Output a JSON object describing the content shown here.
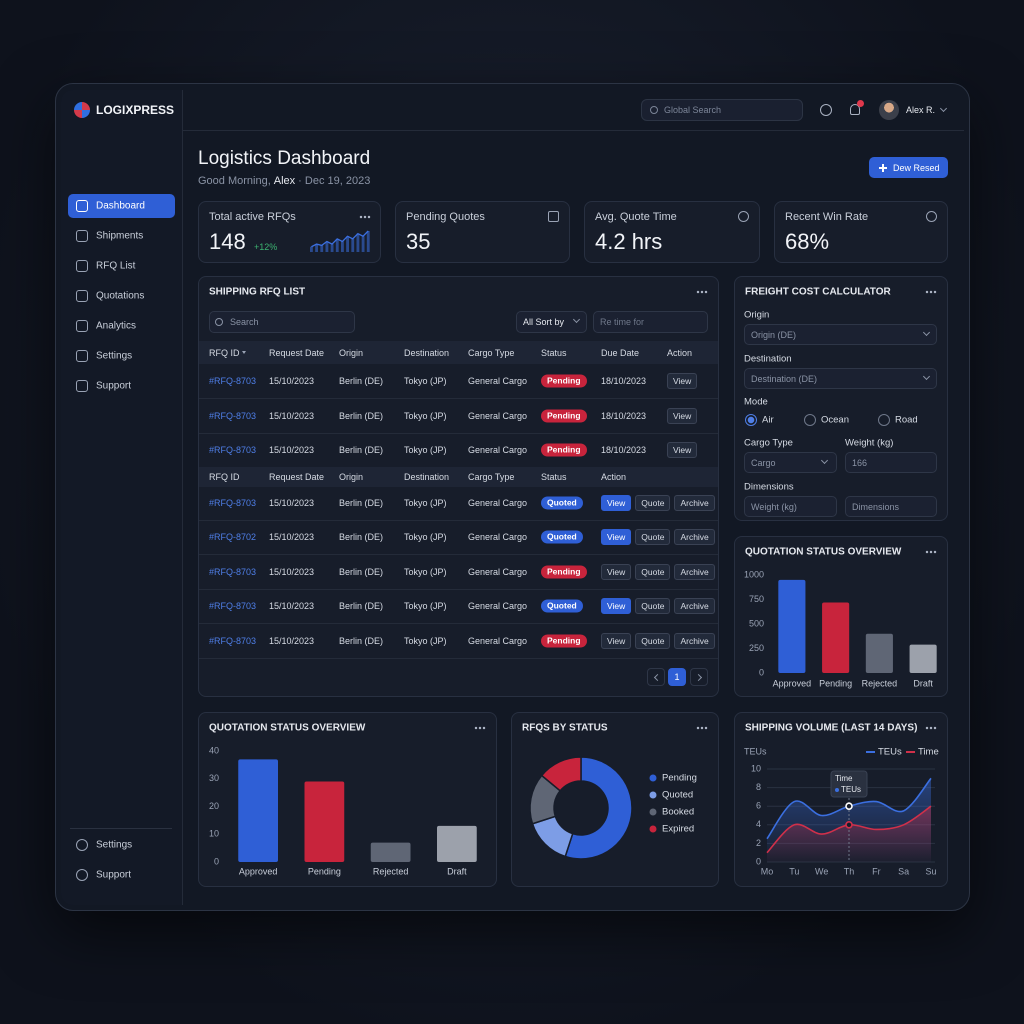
{
  "app": {
    "brand": "LOGIXPRESS",
    "search_placeholder": "Global Search",
    "user": "Alex R."
  },
  "nav": {
    "items": [
      "Dashboard",
      "Shipments",
      "RFQ List",
      "Quotations",
      "Analytics",
      "Settings",
      "Support"
    ],
    "active": 0,
    "footer": [
      "Settings",
      "Support"
    ]
  },
  "header": {
    "title": "Logistics Dashboard",
    "greeting": "Good Morning,",
    "name": "Alex",
    "date": "· Dec 19, 2023",
    "button": "Dew Resed"
  },
  "kpis": [
    {
      "label": "Total active RFQs",
      "value": "148",
      "delta": "+12%"
    },
    {
      "label": "Pending Quotes",
      "value": "35"
    },
    {
      "label": "Avg. Quote Time",
      "value": "4.2 hrs"
    },
    {
      "label": "Recent Win Rate",
      "value": "68%"
    }
  ],
  "rfq_list": {
    "title": "SHIPPING RFQ LIST",
    "search_placeholder": "Search",
    "sort": "All Sort by",
    "filter_placeholder": "Re time for",
    "columns": [
      "RFQ ID",
      "Request Date",
      "Origin",
      "Destination",
      "Cargo Type",
      "Status",
      "Due Date",
      "Action"
    ],
    "columns2": [
      "RFQ ID",
      "Request Date",
      "Origin",
      "Destination",
      "Cargo Type",
      "Status",
      "Action"
    ],
    "status_colors": {
      "Pending": "#c8243c",
      "Quoted": "#2f5fd6"
    },
    "rows": [
      {
        "cells": [
          "#RFQ-8703",
          "15/10/2023",
          "Berlin (DE)",
          "Tokyo (JP)",
          "General Cargo",
          "Pending",
          "18/10/2023"
        ],
        "actions": [
          "View"
        ],
        "action_highlight": false
      },
      {
        "cells": [
          "#RFQ-8703",
          "15/10/2023",
          "Berlin (DE)",
          "Tokyo (JP)",
          "General Cargo",
          "Pending",
          "18/10/2023"
        ],
        "actions": [
          "View"
        ],
        "action_highlight": false
      },
      {
        "cells": [
          "#RFQ-8703",
          "15/10/2023",
          "Berlin (DE)",
          "Tokyo (JP)",
          "General Cargo",
          "Pending",
          "18/10/2023"
        ],
        "actions": [
          "View"
        ],
        "action_highlight": false
      },
      {
        "cells": [
          "#RFQ-8703",
          "15/10/2023",
          "Berlin (DE)",
          "Tokyo (JP)",
          "General Cargo",
          "Quoted"
        ],
        "actions": [
          "View",
          "Quote",
          "Archive"
        ],
        "action_highlight": true
      },
      {
        "cells": [
          "#RFQ-8702",
          "15/10/2023",
          "Berlin (DE)",
          "Tokyo (JP)",
          "General Cargo",
          "Quoted"
        ],
        "actions": [
          "View",
          "Quote",
          "Archive"
        ],
        "action_highlight": true
      },
      {
        "cells": [
          "#RFQ-8703",
          "15/10/2023",
          "Berlin (DE)",
          "Tokyo (JP)",
          "General Cargo",
          "Pending"
        ],
        "actions": [
          "View",
          "Quote",
          "Archive"
        ],
        "action_highlight": false
      },
      {
        "cells": [
          "#RFQ-8703",
          "15/10/2023",
          "Berlin (DE)",
          "Tokyo (JP)",
          "General Cargo",
          "Quoted"
        ],
        "actions": [
          "View",
          "Quote",
          "Archive"
        ],
        "action_highlight": true
      },
      {
        "cells": [
          "#RFQ-8703",
          "15/10/2023",
          "Berlin (DE)",
          "Tokyo (JP)",
          "General Cargo",
          "Pending"
        ],
        "actions": [
          "View",
          "Quote",
          "Archive"
        ],
        "action_highlight": false
      }
    ],
    "pages": [
      "1"
    ]
  },
  "calculator": {
    "title": "FREIGHT COST CALCULATOR",
    "origin_label": "Origin",
    "origin_value": "Origin (DE)",
    "destination_label": "Destination",
    "destination_value": "Destination (DE)",
    "mode_label": "Mode",
    "modes": [
      "Air",
      "Ocean",
      "Road"
    ],
    "mode_selected": 0,
    "cargo_type_label": "Cargo Type",
    "cargo_type_value": "Cargo",
    "weight_label": "Weight (kg)",
    "weight_value": "166",
    "dimensions_label": "Dimensions",
    "dimension_fields": [
      "Weight (kg)",
      "Dimensions"
    ]
  },
  "chart_data": [
    {
      "type": "sparkline",
      "color": "#3b6fe0",
      "values": [
        2,
        3,
        2.5,
        4,
        3,
        5,
        4,
        6,
        5,
        7,
        6,
        8
      ]
    },
    {
      "type": "bar",
      "title": "QUOTATION STATUS OVERVIEW",
      "categories": [
        "Approved",
        "Pending",
        "Rejected",
        "Draft"
      ],
      "values": [
        950,
        720,
        400,
        290
      ],
      "colors": [
        "#2f5fd6",
        "#c8243c",
        "#5f6675",
        "#9ca1ab"
      ],
      "ylim": [
        0,
        1000
      ],
      "yticks": [
        0,
        250,
        500,
        750,
        1000
      ],
      "grid": false
    },
    {
      "type": "bar",
      "title": "QUOTATION STATUS OVERVIEW",
      "categories": [
        "Approved",
        "Pending",
        "Rejected",
        "Draft"
      ],
      "values": [
        37,
        29,
        7,
        13
      ],
      "colors": [
        "#2f5fd6",
        "#c8243c",
        "#5f6675",
        "#9ca1ab"
      ],
      "ylim": [
        0,
        40
      ],
      "yticks": [
        0,
        10,
        20,
        30,
        40
      ],
      "grid": false
    },
    {
      "type": "donut",
      "title": "RFQS BY STATUS",
      "categories": [
        "Pending",
        "Quoted",
        "Booked",
        "Expired"
      ],
      "values": [
        55,
        15,
        16,
        14
      ],
      "colors": [
        "#2f5fd6",
        "#7d9de6",
        "#5f6675",
        "#c8243c"
      ]
    },
    {
      "type": "line",
      "title": "SHIPPING VOLUME (LAST 14 DAYS)",
      "y_label": "TEUs",
      "categories": [
        "Mo",
        "Tu",
        "We",
        "Th",
        "Fr",
        "Sa",
        "Su"
      ],
      "series": [
        {
          "name": "TEUs",
          "color": "#3b6fe0",
          "values": [
            2.5,
            6.5,
            5,
            6,
            6.5,
            5.5,
            9
          ]
        },
        {
          "name": "Time",
          "color": "#d0304a",
          "values": [
            1,
            4,
            3,
            4,
            3.5,
            4,
            6
          ]
        }
      ],
      "ylim": [
        0,
        10
      ],
      "yticks": [
        0,
        2,
        4,
        6,
        8,
        10
      ],
      "grid": true,
      "tooltip": {
        "index": 3,
        "lines": [
          "Time",
          "TEUs"
        ]
      }
    }
  ]
}
